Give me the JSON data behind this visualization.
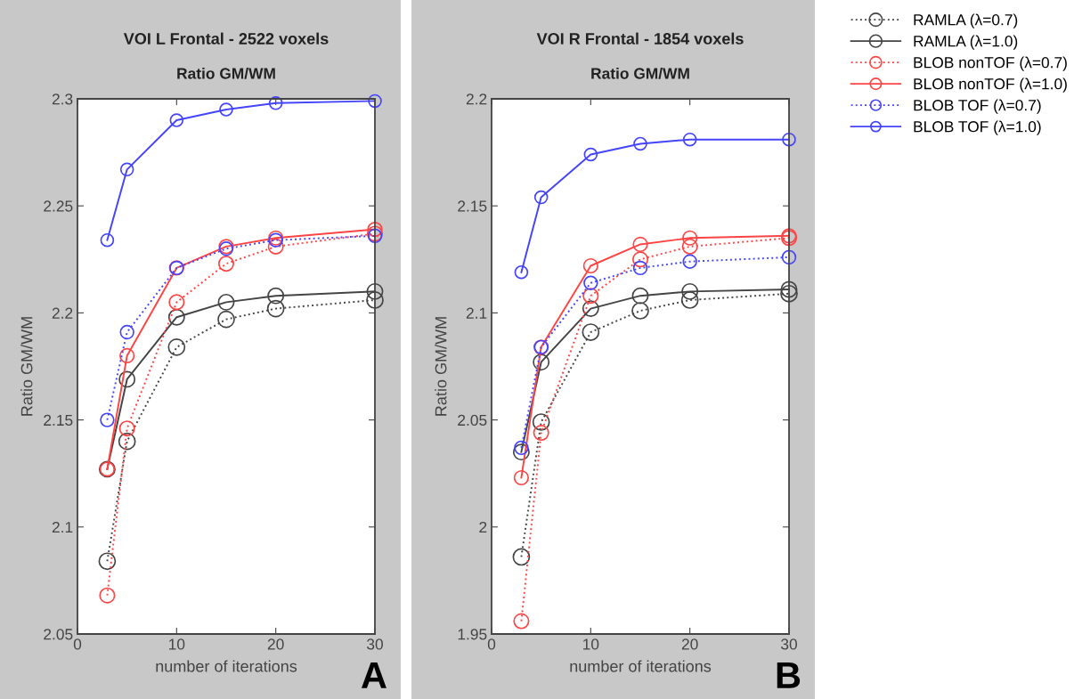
{
  "chart_data": [
    {
      "type": "line",
      "title": "VOI L Frontal - 2522 voxels",
      "subtitle": "Ratio GM/WM",
      "xlabel": "number of iterations",
      "ylabel": "Ratio GM/WM",
      "annotations": [
        "A"
      ],
      "x": [
        3,
        5,
        10,
        15,
        20,
        30
      ],
      "xlim": [
        0,
        30
      ],
      "xticks": [
        0,
        10,
        20,
        30
      ],
      "ylim": [
        2.05,
        2.3
      ],
      "yticks": [
        2.05,
        2.1,
        2.15,
        2.2,
        2.25,
        2.3
      ],
      "marker": "circle",
      "grid": false,
      "legend": false,
      "series": [
        {
          "color": "#444444",
          "line_style": "dotted",
          "values": [
            2.084,
            2.14,
            2.184,
            2.197,
            2.202,
            2.206
          ]
        },
        {
          "color": "#444444",
          "line_style": "solid",
          "values": [
            2.127,
            2.169,
            2.198,
            2.205,
            2.208,
            2.21
          ]
        },
        {
          "color": "#ff4444",
          "line_style": "dotted",
          "values": [
            2.068,
            2.146,
            2.205,
            2.223,
            2.231,
            2.237
          ]
        },
        {
          "color": "#ff4444",
          "line_style": "solid",
          "values": [
            2.127,
            2.18,
            2.221,
            2.231,
            2.235,
            2.239
          ]
        },
        {
          "color": "#4444ff",
          "line_style": "dotted",
          "values": [
            2.15,
            2.191,
            2.221,
            2.23,
            2.234,
            2.236
          ]
        },
        {
          "color": "#4444ff",
          "line_style": "solid",
          "values": [
            2.234,
            2.267,
            2.29,
            2.295,
            2.298,
            2.299
          ]
        }
      ]
    },
    {
      "type": "line",
      "title": "VOI R Frontal - 1854 voxels",
      "subtitle": "Ratio GM/WM",
      "xlabel": "number of iterations",
      "ylabel": "Ratio GM/WM",
      "annotations": [
        "B"
      ],
      "x": [
        3,
        5,
        10,
        15,
        20,
        30
      ],
      "xlim": [
        0,
        30
      ],
      "xticks": [
        0,
        10,
        20,
        30
      ],
      "ylim": [
        1.95,
        2.2
      ],
      "yticks": [
        1.95,
        2,
        2.05,
        2.1,
        2.15,
        2.2
      ],
      "marker": "circle",
      "grid": false,
      "legend": "right",
      "series": [
        {
          "name": "RAMLA (λ=0.7)",
          "color": "#444444",
          "line_style": "dotted",
          "values": [
            1.986,
            2.049,
            2.091,
            2.101,
            2.106,
            2.109
          ]
        },
        {
          "name": "RAMLA (λ=1.0)",
          "color": "#444444",
          "line_style": "solid",
          "values": [
            2.035,
            2.077,
            2.102,
            2.108,
            2.11,
            2.111
          ]
        },
        {
          "name": "BLOB nonTOF (λ=0.7)",
          "color": "#ff4444",
          "line_style": "dotted",
          "values": [
            1.956,
            2.044,
            2.108,
            2.125,
            2.131,
            2.135
          ]
        },
        {
          "name": "BLOB nonTOF (λ=1.0)",
          "color": "#ff4444",
          "line_style": "solid",
          "values": [
            2.023,
            2.084,
            2.122,
            2.132,
            2.135,
            2.136
          ]
        },
        {
          "name": "BLOB TOF (λ=0.7)",
          "color": "#4444ff",
          "line_style": "dotted",
          "values": [
            2.037,
            2.084,
            2.114,
            2.121,
            2.124,
            2.126
          ]
        },
        {
          "name": "BLOB TOF (λ=1.0)",
          "color": "#4444ff",
          "line_style": "solid",
          "values": [
            2.119,
            2.154,
            2.174,
            2.179,
            2.181,
            2.181
          ]
        }
      ]
    }
  ]
}
